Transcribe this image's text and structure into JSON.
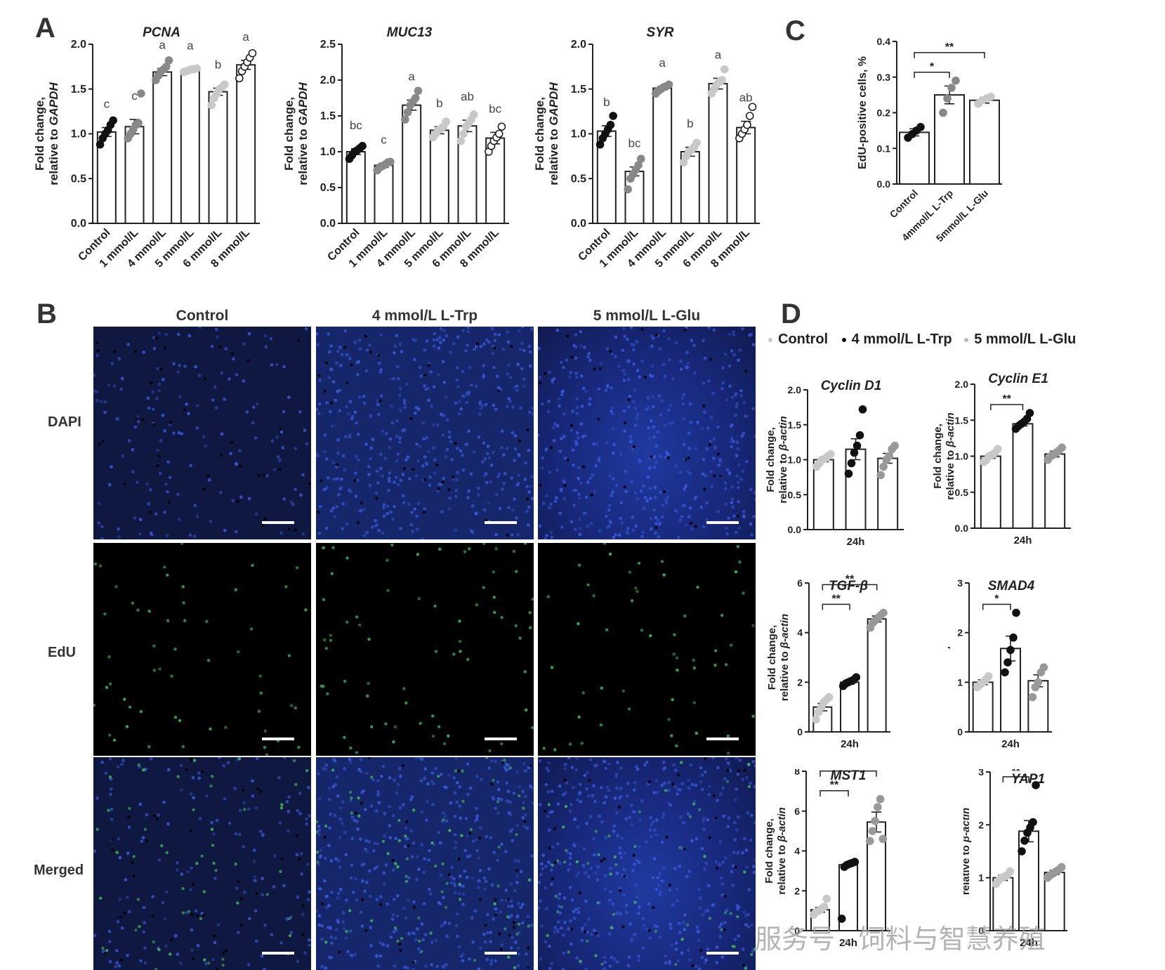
{
  "panels": {
    "A": "A",
    "B": "B",
    "C": "C",
    "D": "D"
  },
  "panel_a_ylabel_1": "Fold change,",
  "panel_a_ylabel_2": "relative to",
  "panel_a_ylabel_gene": "GAPDH",
  "panel_d_ylabel_1": "Fold change,",
  "panel_d_ylabel_2": "relative to",
  "panel_d_ylabel_gene": "β-actin",
  "panel_b": {
    "columns": [
      "Control",
      "4 mmol/L L-Trp",
      "5 mmol/L L-Glu"
    ],
    "rows": [
      "DAPI",
      "EdU",
      "Merged"
    ]
  },
  "panel_d_legend": [
    "Control",
    "4 mmol/L L-Trp",
    "5 mmol/L L-Glu"
  ],
  "watermark": "服务号 · 饲料与智慧养殖",
  "colors": {
    "black": "#111111",
    "mid_gray": "#888888",
    "light_gray": "#c8c8c8",
    "nuclei_blue": "#2a46c8",
    "edu_green": "#3fbf5a"
  },
  "chart_data": [
    {
      "id": "A1",
      "type": "bar",
      "title": "PCNA",
      "categories": [
        "Control",
        "1 mmol/L",
        "4 mmol/L",
        "5 mmol/L",
        "6 mmol/L",
        "8 mmol/L"
      ],
      "values": [
        1.02,
        1.08,
        1.69,
        1.71,
        1.47,
        1.77
      ],
      "errors": [
        0.05,
        0.08,
        0.04,
        0.01,
        0.04,
        0.05
      ],
      "letters": [
        "c",
        "c",
        "a",
        "a",
        "b",
        "a"
      ],
      "ylim": [
        0,
        2.0
      ],
      "yticks": [
        "0.0",
        "0.5",
        "1.0",
        "1.5",
        "2.0"
      ],
      "points": [
        [
          0.88,
          0.95,
          1.0,
          1.04,
          1.1,
          1.15
        ],
        [
          0.95,
          1.0,
          1.05,
          1.1,
          1.12,
          1.45
        ],
        [
          1.6,
          1.65,
          1.7,
          1.72,
          1.75,
          1.82
        ],
        [
          1.69,
          1.7,
          1.71,
          1.72,
          1.72,
          1.73
        ],
        [
          1.32,
          1.4,
          1.45,
          1.5,
          1.52,
          1.55
        ],
        [
          1.62,
          1.7,
          1.75,
          1.8,
          1.85,
          1.9
        ]
      ]
    },
    {
      "id": "A2",
      "type": "bar",
      "title": "MUC13",
      "categories": [
        "Control",
        "1 mmol/L",
        "4 mmol/L",
        "5 mmol/L",
        "6 mmol/L",
        "8 mmol/L"
      ],
      "values": [
        1.0,
        0.81,
        1.65,
        1.3,
        1.36,
        1.19
      ],
      "errors": [
        0.04,
        0.03,
        0.07,
        0.05,
        0.08,
        0.08
      ],
      "letters": [
        "bc",
        "c",
        "a",
        "b",
        "ab",
        "bc"
      ],
      "ylim": [
        0,
        2.5
      ],
      "yticks": [
        "0.0",
        "0.5",
        "1.0",
        "1.5",
        "2.0",
        "2.5"
      ],
      "points": [
        [
          0.9,
          0.95,
          1.0,
          1.02,
          1.05,
          1.08
        ],
        [
          0.74,
          0.78,
          0.8,
          0.82,
          0.85,
          0.86
        ],
        [
          1.45,
          1.55,
          1.65,
          1.7,
          1.75,
          1.85
        ],
        [
          1.2,
          1.25,
          1.3,
          1.32,
          1.35,
          1.42
        ],
        [
          1.15,
          1.25,
          1.35,
          1.4,
          1.45,
          1.52
        ],
        [
          1.0,
          1.08,
          1.15,
          1.2,
          1.25,
          1.35
        ]
      ]
    },
    {
      "id": "A3",
      "type": "bar",
      "title": "SYR",
      "categories": [
        "Control",
        "1 mmol/L",
        "4 mmol/L",
        "5 mmol/L",
        "6 mmol/L",
        "8 mmol/L"
      ],
      "values": [
        1.03,
        0.58,
        1.51,
        0.8,
        1.56,
        1.07
      ],
      "errors": [
        0.06,
        0.05,
        0.02,
        0.05,
        0.06,
        0.07
      ],
      "letters": [
        "b",
        "bc",
        "a",
        "b",
        "a",
        "ab"
      ],
      "ylim": [
        0,
        2.0
      ],
      "yticks": [
        "0.0",
        "0.5",
        "1.0",
        "1.5",
        "2.0"
      ],
      "points": [
        [
          0.88,
          0.95,
          1.0,
          1.05,
          1.1,
          1.2
        ],
        [
          0.38,
          0.5,
          0.55,
          0.6,
          0.65,
          0.72
        ],
        [
          1.45,
          1.48,
          1.5,
          1.52,
          1.53,
          1.55
        ],
        [
          0.68,
          0.75,
          0.8,
          0.82,
          0.85,
          0.9
        ],
        [
          1.45,
          1.5,
          1.55,
          1.58,
          1.6,
          1.72
        ],
        [
          0.95,
          1.0,
          1.05,
          1.1,
          1.2,
          1.3
        ]
      ]
    },
    {
      "id": "C",
      "type": "bar",
      "ylabel": "EdU-positive cells, %",
      "categories": [
        "Control",
        "4mmol/L L-Trp",
        "5mmol/L L-Glu"
      ],
      "values": [
        0.145,
        0.25,
        0.235
      ],
      "errors": [
        0.01,
        0.025,
        0.008
      ],
      "ylim": [
        0,
        0.4
      ],
      "yticks": [
        "0.0",
        "0.1",
        "0.2",
        "0.3",
        "0.4"
      ],
      "points": [
        [
          0.13,
          0.14,
          0.15,
          0.16
        ],
        [
          0.2,
          0.24,
          0.27,
          0.29
        ],
        [
          0.225,
          0.235,
          0.24,
          0.245
        ]
      ],
      "significance": [
        {
          "from": 0,
          "to": 1,
          "label": "*"
        },
        {
          "from": 0,
          "to": 2,
          "label": "**"
        }
      ]
    },
    {
      "id": "D1",
      "type": "bar",
      "title": "Cyclin D1",
      "xlabel": "24h",
      "values": [
        1.0,
        1.15,
        1.02
      ],
      "errors": [
        0.03,
        0.15,
        0.07
      ],
      "ylim": [
        0,
        2.0
      ],
      "yticks": [
        "0.0",
        "0.5",
        "1.0",
        "1.5",
        "2.0"
      ],
      "points": [
        [
          0.9,
          0.95,
          1.0,
          1.02,
          1.05,
          1.08
        ],
        [
          0.8,
          0.95,
          1.1,
          1.2,
          1.35,
          1.72
        ],
        [
          0.78,
          0.9,
          1.0,
          1.05,
          1.15,
          1.2
        ]
      ],
      "significance": []
    },
    {
      "id": "D2",
      "type": "bar",
      "title": "Cyclin E1",
      "xlabel": "24h",
      "values": [
        1.0,
        1.45,
        1.03
      ],
      "errors": [
        0.03,
        0.03,
        0.04
      ],
      "ylim": [
        0,
        2.0
      ],
      "yticks": [
        "0.0",
        "0.5",
        "1.0",
        "1.5",
        "2.0"
      ],
      "points": [
        [
          0.92,
          0.95,
          1.0,
          1.02,
          1.05,
          1.1
        ],
        [
          1.38,
          1.42,
          1.45,
          1.48,
          1.52,
          1.6
        ],
        [
          0.95,
          1.0,
          1.02,
          1.05,
          1.08,
          1.12
        ]
      ],
      "significance": [
        {
          "from": 0,
          "to": 1,
          "label": "**"
        }
      ]
    },
    {
      "id": "D3",
      "type": "bar",
      "title": "TGF-β",
      "xlabel": "24h",
      "values": [
        1.0,
        2.0,
        4.55
      ],
      "errors": [
        0.15,
        0.08,
        0.12
      ],
      "ylim": [
        0,
        6
      ],
      "yticks": [
        "0",
        "2",
        "4",
        "6"
      ],
      "points": [
        [
          0.5,
          0.8,
          1.0,
          1.2,
          1.3,
          1.4
        ],
        [
          1.85,
          1.95,
          2.0,
          2.05,
          2.1,
          2.2
        ],
        [
          4.2,
          4.4,
          4.5,
          4.6,
          4.7,
          4.8
        ]
      ],
      "significance": [
        {
          "from": 0,
          "to": 1,
          "label": "**"
        },
        {
          "from": 0,
          "to": 2,
          "label": "**"
        }
      ]
    },
    {
      "id": "D4",
      "type": "bar",
      "title": "SMAD4",
      "xlabel": "24h",
      "values": [
        1.0,
        1.68,
        1.03
      ],
      "errors": [
        0.05,
        0.25,
        0.12
      ],
      "ylim": [
        0,
        3
      ],
      "yticks": [
        "0",
        "1",
        "2",
        "3"
      ],
      "points": [
        [
          0.9,
          0.95,
          1.0,
          1.05,
          1.12
        ],
        [
          1.2,
          1.4,
          1.65,
          1.9,
          2.4
        ],
        [
          0.7,
          0.9,
          1.0,
          1.2,
          1.3
        ]
      ],
      "significance": [
        {
          "from": 0,
          "to": 1,
          "label": "*"
        }
      ]
    },
    {
      "id": "D5",
      "type": "bar",
      "title": "MST1",
      "xlabel": "24h",
      "values": [
        1.05,
        3.3,
        5.45
      ],
      "errors": [
        0.12,
        0.07,
        0.5
      ],
      "ylim": [
        0,
        8
      ],
      "yticks": [
        "0",
        "2",
        "4",
        "6",
        "8"
      ],
      "points": [
        [
          0.8,
          0.95,
          1.0,
          1.1,
          1.2,
          1.6
        ],
        [
          0.6,
          3.2,
          3.3,
          3.35,
          3.4,
          3.45
        ],
        [
          4.5,
          5.0,
          5.5,
          6.2,
          6.6,
          4.6
        ]
      ],
      "significance": [
        {
          "from": 0,
          "to": 1,
          "label": "**"
        },
        {
          "from": 0,
          "to": 2,
          "label": "**"
        }
      ]
    },
    {
      "id": "D6",
      "type": "bar",
      "title": "YAP1",
      "xlabel": "24h",
      "values": [
        1.0,
        1.88,
        1.1
      ],
      "errors": [
        0.05,
        0.2,
        0.04
      ],
      "ylim": [
        0,
        3
      ],
      "yticks": [
        "0",
        "1",
        "2",
        "3"
      ],
      "points": [
        [
          0.88,
          0.95,
          1.0,
          1.02,
          1.05,
          1.12
        ],
        [
          1.5,
          1.7,
          1.85,
          1.95,
          2.05,
          2.75
        ],
        [
          1.0,
          1.05,
          1.08,
          1.12,
          1.15,
          1.2
        ]
      ],
      "significance": [
        {
          "from": 0,
          "to": 1,
          "label": "**"
        }
      ]
    }
  ]
}
